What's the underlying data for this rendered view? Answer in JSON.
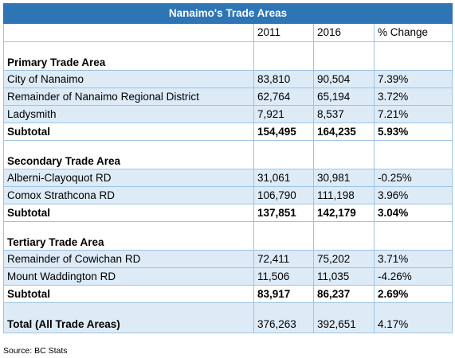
{
  "table": {
    "title": "Nanaimo's Trade Areas",
    "columns": [
      "",
      "2011",
      "2016",
      "% Change"
    ],
    "sections": [
      {
        "label": "Primary Trade Area",
        "rows": [
          {
            "name": "City of Nanaimo",
            "y2011": "83,810",
            "y2016": "90,504",
            "change": "7.39%"
          },
          {
            "name": "Remainder of Nanaimo Regional District",
            "y2011": "62,764",
            "y2016": "65,194",
            "change": "3.72%"
          },
          {
            "name": "Ladysmith",
            "y2011": "7,921",
            "y2016": "8,537",
            "change": "7.21%"
          }
        ],
        "subtotal": {
          "name": "Subtotal",
          "y2011": "154,495",
          "y2016": "164,235",
          "change": "5.93%"
        }
      },
      {
        "label": "Secondary Trade Area",
        "rows": [
          {
            "name": "Alberni-Clayoquot RD",
            "y2011": "31,061",
            "y2016": "30,981",
            "change": "-0.25%"
          },
          {
            "name": "Comox Strathcona RD",
            "y2011": "106,790",
            "y2016": "111,198",
            "change": "3.96%"
          }
        ],
        "subtotal": {
          "name": "Subtotal",
          "y2011": "137,851",
          "y2016": "142,179",
          "change": "3.04%"
        }
      },
      {
        "label": "Tertiary Trade Area",
        "rows": [
          {
            "name": "Remainder of Cowichan RD",
            "y2011": "72,411",
            "y2016": "75,202",
            "change": "3.71%"
          },
          {
            "name": "Mount Waddington RD",
            "y2011": "11,506",
            "y2016": "11,035",
            "change": "-4.26%"
          }
        ],
        "subtotal": {
          "name": "Subtotal",
          "y2011": "83,917",
          "y2016": "86,237",
          "change": "2.69%"
        }
      }
    ],
    "total": {
      "name": "Total (All Trade Areas)",
      "y2011": "376,263",
      "y2016": "392,651",
      "change": "4.17%"
    }
  },
  "source": "Source: BC Stats",
  "colors": {
    "title_bg": "#2e75b6",
    "row_fill": "#ddebf7",
    "border": "#9dc3e6"
  }
}
